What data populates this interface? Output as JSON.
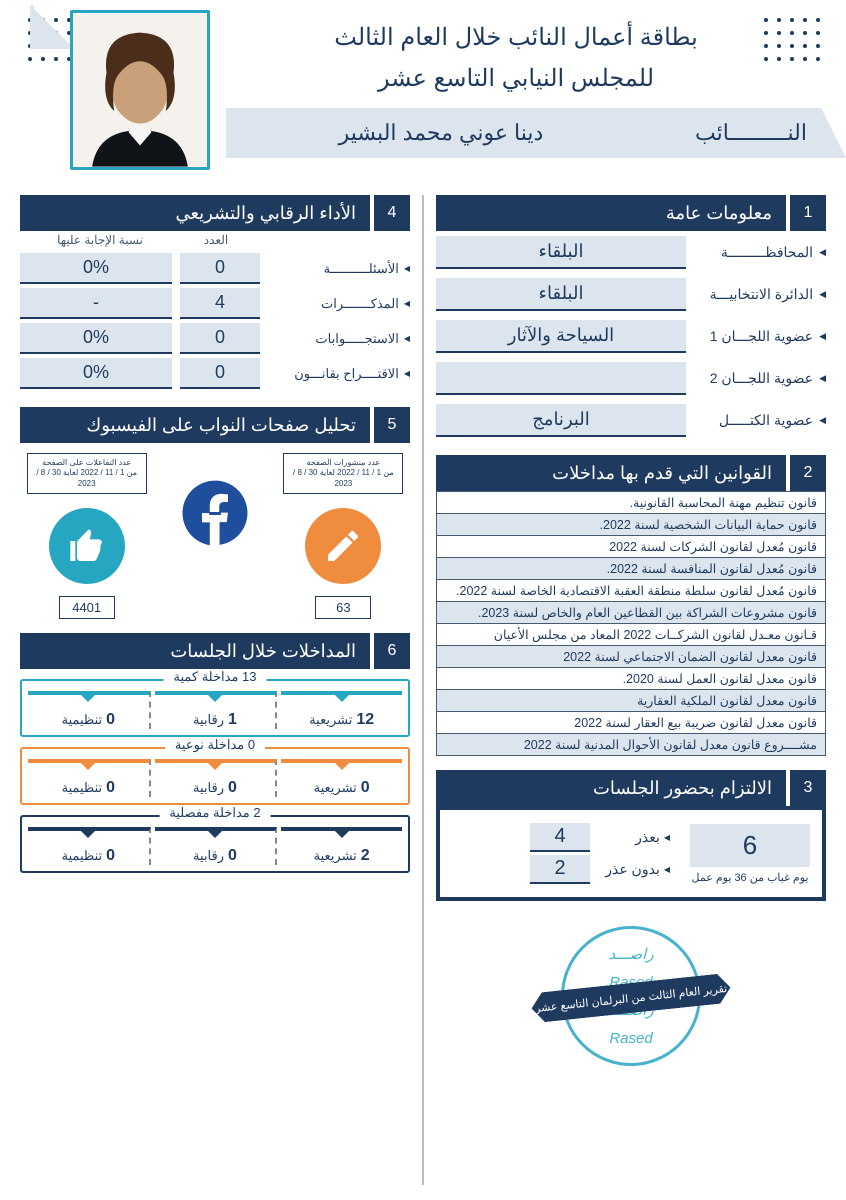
{
  "header": {
    "title_l1": "بطاقة أعمال النائب خلال العام الثالث",
    "title_l2": "للمجلس النيابي التاسع عشر",
    "role_label": "النـــــــــائب",
    "name": "دينا عوني محمد البشير"
  },
  "colors": {
    "navy": "#1e3a5f",
    "lightblue": "#dce5ee",
    "teal": "#27a6c1",
    "orange": "#f08c3e",
    "fb_blue": "#1f4e9c"
  },
  "sec1": {
    "num": "1",
    "title": "معلومات عامة",
    "rows": [
      {
        "label": "المحافظـــــــــة",
        "value": "البلقاء"
      },
      {
        "label": "الدائرة الانتخابيـــة",
        "value": "البلقاء"
      },
      {
        "label": "عضوية اللجـــان 1",
        "value": "السياحة والآثار"
      },
      {
        "label": "عضوية اللجـــان 2",
        "value": ""
      },
      {
        "label": "عضوية الكتـــــل",
        "value": "البرنامج"
      }
    ]
  },
  "sec2": {
    "num": "2",
    "title": "القوانين التي قدم بها مداخلات",
    "laws": [
      "قانون تنظيم مهنة المحاسبة القانونية.",
      "قانون حماية البيانات الشخصية لسنة 2022.",
      "قانون مُعدل لقانون الشركات لسنة 2022",
      "قانون مُعدل لقانون المنافسة لسنة 2022.",
      "قانون مُعدل لقانون سلطة منطقة العقبة الاقتصادية الخاصة لسنة 2022.",
      "قانون مشروعات الشراكة بين القطاعين العام والخاص لسنة 2023.",
      "قـانون معـدل لقانون الشركــات 2022 المعاد من مجلس الأعيان",
      "قانون معدل لقانون الضمان الاجتماعي لسنة 2022",
      "قانون معدل لقانون العمل لسنة 2020.",
      "قانون معدل لقانون الملكية العقارية",
      "قانون معدل لقانون ضريبة بيع العقار لسنة 2022",
      "مشــــروع قانون معدل لقانون الأحوال المدنية لسنة 2022"
    ]
  },
  "sec3": {
    "num": "3",
    "title": "الالتزام بحضور الجلسات",
    "absence_total": "6",
    "absence_caption": "يوم غياب من 36 يوم عمل",
    "excused_label": "بعذر",
    "excused": "4",
    "unexcused_label": "بدون عذر",
    "unexcused": "2"
  },
  "sec4": {
    "num": "4",
    "title": "الأداء الرقابي والتشريعي",
    "head_count": "العدد",
    "head_pct": "نسبة الإجابة عليها",
    "rows": [
      {
        "label": "الأسئلــــــــــة",
        "count": "0",
        "pct": "0%"
      },
      {
        "label": "المذكـــــــرات",
        "count": "4",
        "pct": "-"
      },
      {
        "label": "الاستجـــــوابات",
        "count": "0",
        "pct": "0%"
      },
      {
        "label": "الاقتــــراح بقانـــون",
        "count": "0",
        "pct": "0%"
      }
    ]
  },
  "sec5": {
    "num": "5",
    "title": "تحليل صفحات النواب على الفيسبوك",
    "posts_label": "عدد منشورات الصفحة",
    "interactions_label": "عدد التفاعلات على الصفحة",
    "range": "من 1 / 11 / 2022 لغاية 30 / 8 / 2023",
    "posts": "63",
    "interactions": "4401"
  },
  "sec6": {
    "num": "6",
    "title": "المداخلات خلال الجلسات",
    "blocks": [
      {
        "color": "teal",
        "title": "13 مداخلة كمية",
        "cells": [
          {
            "n": "12",
            "t": "تشريعية"
          },
          {
            "n": "1",
            "t": "رقابية"
          },
          {
            "n": "0",
            "t": "تنظيمية"
          }
        ]
      },
      {
        "color": "orange",
        "title": "0 مداخلة نوعية",
        "cells": [
          {
            "n": "0",
            "t": "تشريعية"
          },
          {
            "n": "0",
            "t": "رقابية"
          },
          {
            "n": "0",
            "t": "تنظيمية"
          }
        ]
      },
      {
        "color": "navy",
        "title": "2 مداخلة مفصلية",
        "cells": [
          {
            "n": "2",
            "t": "تشريعية"
          },
          {
            "n": "0",
            "t": "رقابية"
          },
          {
            "n": "0",
            "t": "تنظيمية"
          }
        ]
      }
    ]
  },
  "stamp": {
    "ar": "راصـــد",
    "en": "Rased",
    "banner": "تقرير العام الثالث من البرلمان التاسع عشر"
  }
}
